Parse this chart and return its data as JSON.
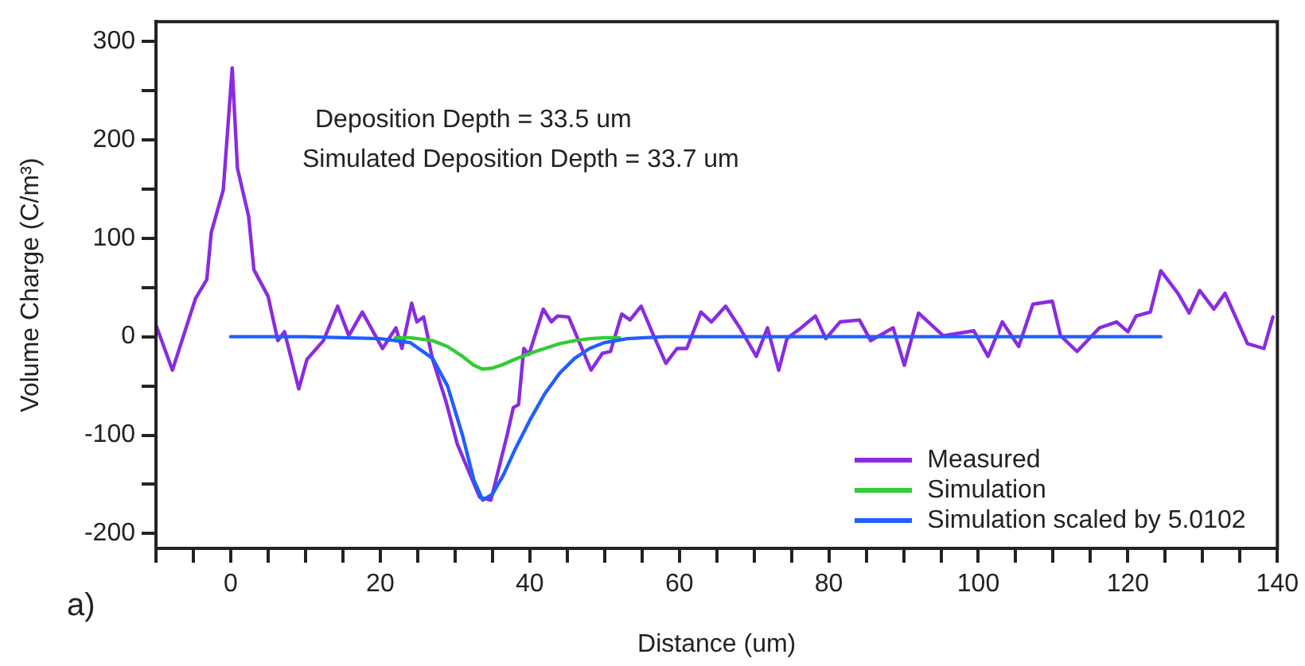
{
  "chart_data": {
    "type": "line",
    "xlabel": "Distance (um)",
    "ylabel": "Volume Charge (C/m³)",
    "annotations": [
      {
        "text": "Deposition Depth = 33.5 um"
      },
      {
        "text": "Simulated Deposition Depth = 33.7 um"
      },
      {
        "text": "a)"
      }
    ],
    "xlim": [
      -10,
      140
    ],
    "ylim": [
      -215,
      320
    ],
    "xticks": [
      {
        "value": -10,
        "label": null
      },
      {
        "value": -5,
        "label": null
      },
      0,
      {
        "value": 5,
        "label": null
      },
      {
        "value": 10,
        "label": null
      },
      {
        "value": 15,
        "label": null
      },
      20,
      {
        "value": 25,
        "label": null
      },
      {
        "value": 30,
        "label": null
      },
      {
        "value": 35,
        "label": null
      },
      40,
      {
        "value": 45,
        "label": null
      },
      {
        "value": 50,
        "label": null
      },
      {
        "value": 55,
        "label": null
      },
      60,
      {
        "value": 65,
        "label": null
      },
      {
        "value": 70,
        "label": null
      },
      {
        "value": 75,
        "label": null
      },
      80,
      {
        "value": 85,
        "label": null
      },
      {
        "value": 90,
        "label": null
      },
      {
        "value": 95,
        "label": null
      },
      100,
      {
        "value": 105,
        "label": null
      },
      {
        "value": 110,
        "label": null
      },
      {
        "value": 115,
        "label": null
      },
      120,
      {
        "value": 125,
        "label": null
      },
      {
        "value": 130,
        "label": null
      },
      {
        "value": 135,
        "label": null
      },
      140
    ],
    "yticks": [
      -200,
      {
        "value": -150,
        "label": null
      },
      -100,
      {
        "value": -50,
        "label": null
      },
      0,
      {
        "value": 50,
        "label": null
      },
      100,
      {
        "value": 150,
        "label": null
      },
      200,
      {
        "value": 250,
        "label": null
      },
      300
    ],
    "grid": false,
    "legend": "bottom right",
    "marker": "none",
    "line_style": "solid",
    "series": [
      {
        "name": "Measured",
        "color": "#8a2be2",
        "x": [
          -10,
          -7.8,
          -4.7,
          -3.2,
          -2.6,
          -1,
          0.2,
          0.9,
          2.4,
          3.1,
          5,
          6.3,
          7.2,
          9.1,
          10.2,
          12.4,
          14.3,
          15.8,
          17.6,
          20.3,
          22.1,
          22.9,
          24.2,
          24.9,
          25.8,
          27,
          28.8,
          30.3,
          33.3,
          34.8,
          37,
          37.8,
          38.5,
          39.2,
          39.9,
          41.8,
          42.9,
          43.7,
          45.2,
          48.2,
          49.7,
          50.8,
          52.3,
          53.4,
          54.9,
          56.4,
          58.2,
          59.7,
          61,
          62.9,
          64.3,
          66.2,
          68.1,
          70.3,
          71.8,
          73.3,
          74.4,
          76.3,
          78.2,
          79.6,
          81.5,
          84.1,
          85.6,
          88.6,
          90.1,
          92,
          95.3,
          99.4,
          101.3,
          103.2,
          105.4,
          107.3,
          109.9,
          111,
          113.2,
          116.2,
          118.5,
          120,
          121.1,
          123,
          124.4,
          126.7,
          128.2,
          129.6,
          131.5,
          133,
          136,
          138.2,
          139.4
        ],
        "values": [
          12,
          -34,
          39,
          58,
          106,
          149,
          273,
          171,
          122,
          68,
          41,
          -4,
          5,
          -53,
          -23,
          -4,
          31,
          1,
          25,
          -12,
          9,
          -12,
          34,
          15,
          20,
          -23,
          -66,
          -109,
          -163,
          -166,
          -99,
          -72,
          -69,
          -12,
          -18,
          28,
          15,
          21,
          20,
          -34,
          -17,
          -15,
          23,
          17,
          31,
          4,
          -27,
          -12,
          -12,
          25,
          15,
          31,
          9,
          -20,
          9,
          -34,
          -2,
          9,
          21,
          -2,
          15,
          17,
          -4,
          9,
          -29,
          24,
          1,
          6,
          -20,
          15,
          -10,
          33,
          36,
          1,
          -15,
          9,
          15,
          5,
          21,
          25,
          67,
          44,
          24,
          47,
          28,
          44,
          -7,
          -12,
          20
        ]
      },
      {
        "name": "Simulation",
        "color": "#33cc33",
        "x": [
          22,
          24,
          27,
          29,
          31,
          32.5,
          33.7,
          35,
          36.5,
          38,
          40,
          42,
          44,
          46,
          48,
          50,
          52
        ],
        "values": [
          -1,
          -1,
          -4,
          -10,
          -20,
          -29,
          -33,
          -32,
          -28,
          -23,
          -17,
          -12,
          -7,
          -4,
          -2,
          -1,
          -1
        ]
      },
      {
        "name": "Simulation scaled by 5.0102",
        "color": "#1f5fff",
        "x": [
          0,
          10,
          20,
          24,
          27,
          29,
          31,
          32.5,
          33.7,
          35,
          36.5,
          38,
          40,
          42,
          44,
          46,
          48,
          50,
          53,
          58,
          80,
          100,
          124.4
        ],
        "values": [
          0,
          0,
          -2,
          -6,
          -22,
          -50,
          -100,
          -145,
          -166,
          -160,
          -140,
          -115,
          -85,
          -58,
          -37,
          -22,
          -12,
          -6,
          -2,
          0,
          0,
          0,
          0
        ]
      }
    ]
  }
}
